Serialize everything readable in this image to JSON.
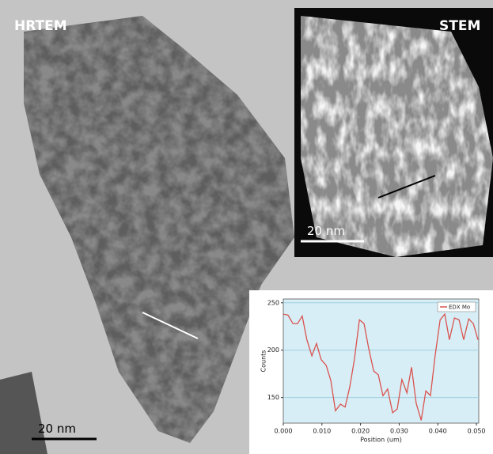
{
  "labels": {
    "hrtem": "HRTEM",
    "stem": "STEM",
    "hrtem_scale": "20 nm",
    "stem_scale": "20 nm"
  },
  "chart_data": {
    "type": "line",
    "x_label": "Position (um)",
    "y_label": "Counts",
    "x": [
      0,
      0.0012,
      0.0025,
      0.0037,
      0.0049,
      0.0061,
      0.0074,
      0.0086,
      0.0098,
      0.0111,
      0.0123,
      0.0135,
      0.0148,
      0.016,
      0.0172,
      0.0184,
      0.0197,
      0.0209,
      0.0221,
      0.0234,
      0.0246,
      0.0258,
      0.027,
      0.0283,
      0.0295,
      0.0307,
      0.032,
      0.0332,
      0.0344,
      0.0357,
      0.0369,
      0.0381,
      0.0393,
      0.0406,
      0.0418,
      0.043,
      0.0443,
      0.0455,
      0.0467,
      0.048,
      0.0492,
      0.0504
    ],
    "series": [
      {
        "name": "EDX Mo",
        "color": "#d9534f",
        "values": [
          238,
          237,
          228,
          228,
          236,
          211,
          194,
          207,
          190,
          184,
          168,
          136,
          143,
          140,
          161,
          190,
          232,
          228,
          202,
          178,
          174,
          152,
          159,
          134,
          138,
          169,
          155,
          182,
          144,
          126,
          157,
          152,
          194,
          232,
          238,
          211,
          234,
          232,
          211,
          233,
          228,
          211
        ]
      }
    ],
    "xlim": [
      0,
      0.0506
    ],
    "ylim": [
      123,
      254
    ],
    "xticks": [
      {
        "value": 0,
        "label": "0.000"
      },
      {
        "value": 0.01,
        "label": "0.010"
      },
      {
        "value": 0.02,
        "label": "0.020"
      },
      {
        "value": 0.03,
        "label": "0.030"
      },
      {
        "value": 0.04,
        "label": "0.040"
      },
      {
        "value": 0.05,
        "label": "0.050"
      }
    ],
    "yticks": [
      150,
      200,
      250
    ],
    "grid": true,
    "legend": "upper right"
  }
}
